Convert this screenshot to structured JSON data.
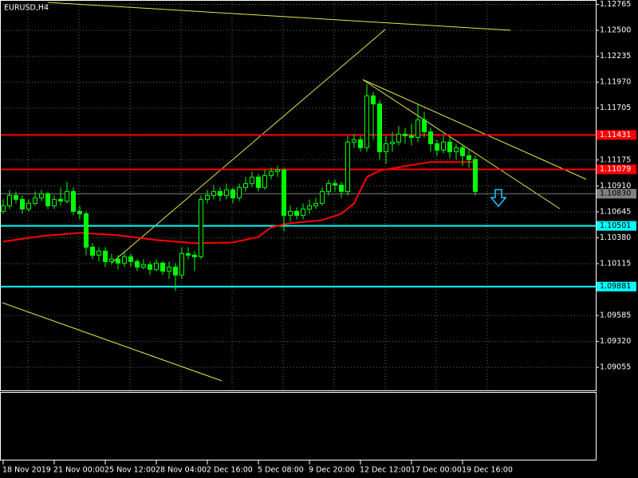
{
  "chart_data": {
    "type": "candlestick",
    "title": "EURUSD,H4",
    "background": "#000000",
    "up_color": "#00ff00",
    "down_color": "#00ff00",
    "grid": true,
    "grid_color": "#c0c0c0",
    "xlim": [
      -0.5,
      92.875
    ],
    "ylim": [
      1.0882,
      1.1281
    ],
    "xticks": [
      {
        "value": 0,
        "label": "18 Nov 2019"
      },
      {
        "value": 8,
        "label": "21 Nov 00:00"
      },
      {
        "value": 16,
        "label": "25 Nov 12:00"
      },
      {
        "value": 24,
        "label": "28 Nov 04:00"
      },
      {
        "value": 32,
        "label": "2 Dec 16:00"
      },
      {
        "value": 40,
        "label": "5 Dec 08:00"
      },
      {
        "value": 48,
        "label": "9 Dec 20:00"
      },
      {
        "value": 56,
        "label": "12 Dec 12:00"
      },
      {
        "value": 64,
        "label": "17 Dec 00:00"
      },
      {
        "value": 72,
        "label": "19 Dec 16:00"
      }
    ],
    "yticks": [
      1.12765,
      {
        "value": 1.125,
        "label": "1.12500"
      },
      1.12235,
      {
        "value": 1.1197,
        "label": "1.11970"
      },
      1.11705,
      1.11175,
      {
        "value": 1.1091,
        "label": "1.10910"
      },
      1.10645,
      {
        "value": 1.1038,
        "label": "1.10380"
      },
      1.10115,
      1.09585,
      {
        "value": 1.0932,
        "label": "1.09320"
      },
      1.09055
    ],
    "open": [
      1.1065,
      1.10707,
      1.10812,
      1.10772,
      1.10674,
      1.10731,
      1.10788,
      1.10829,
      1.10707,
      1.10772,
      1.10755,
      1.10853,
      1.1065,
      1.10625,
      1.10284,
      1.10202,
      1.10243,
      1.10137,
      1.10162,
      1.10121,
      1.10186,
      1.10137,
      1.1008,
      1.10105,
      1.10056,
      1.10121,
      1.10039,
      1.1008,
      1.09999,
      1.10218,
      1.10202,
      1.10186,
      1.10772,
      1.10812,
      1.10853,
      1.10812,
      1.10869,
      1.10788,
      1.10894,
      1.10934,
      1.11,
      1.10894,
      1.11016,
      1.11057,
      1.11073,
      1.10609,
      1.1065,
      1.10609,
      1.10674,
      1.10707,
      1.10731,
      1.10853,
      1.10934,
      1.10918,
      1.10853,
      1.11358,
      1.11382,
      1.11301,
      1.1183,
      1.11748,
      1.1126,
      1.11341,
      1.11358,
      1.11439,
      1.11423,
      1.11406,
      1.11585,
      1.11463,
      1.11341,
      1.11276,
      1.11358,
      1.1126,
      1.11301,
      1.11219,
      1.11179
    ],
    "high": [
      1.10772,
      1.10869,
      1.10853,
      1.10812,
      1.10772,
      1.10853,
      1.10869,
      1.10853,
      1.10812,
      1.10894,
      1.10951,
      1.10894,
      1.10707,
      1.1065,
      1.10324,
      1.10284,
      1.10284,
      1.10218,
      1.10202,
      1.10243,
      1.10218,
      1.10162,
      1.10162,
      1.10137,
      1.10162,
      1.10137,
      1.10137,
      1.10121,
      1.10284,
      1.10284,
      1.10243,
      1.10812,
      1.10869,
      1.10918,
      1.10894,
      1.10934,
      1.10894,
      1.10934,
      1.11,
      1.11057,
      1.11032,
      1.11073,
      1.11097,
      1.11113,
      1.11097,
      1.10707,
      1.1069,
      1.10731,
      1.10772,
      1.10788,
      1.10894,
      1.10975,
      1.10975,
      1.10951,
      1.11423,
      1.11439,
      1.11423,
      1.11952,
      1.1187,
      1.11789,
      1.11423,
      1.11463,
      1.1152,
      1.11504,
      1.11545,
      1.11748,
      1.11667,
      1.11504,
      1.11382,
      1.11423,
      1.11406,
      1.11341,
      1.11325,
      1.11276,
      1.11219
    ],
    "low": [
      1.10625,
      1.10674,
      1.10731,
      1.10625,
      1.1065,
      1.10707,
      1.10755,
      1.10674,
      1.10674,
      1.10707,
      1.10731,
      1.10609,
      1.10568,
      1.10202,
      1.10162,
      1.10137,
      1.1008,
      1.10105,
      1.10056,
      1.1008,
      1.1008,
      1.10039,
      1.10056,
      1.09999,
      1.10039,
      1.09999,
      1.09958,
      1.09836,
      1.09958,
      1.10162,
      1.10039,
      1.10162,
      1.10731,
      1.10772,
      1.10755,
      1.10772,
      1.10731,
      1.10755,
      1.10853,
      1.10894,
      1.10853,
      1.10869,
      1.10975,
      1.11,
      1.10446,
      1.10544,
      1.10568,
      1.10568,
      1.10625,
      1.10674,
      1.10707,
      1.10812,
      1.10853,
      1.10788,
      1.10812,
      1.11301,
      1.1126,
      1.1126,
      1.11382,
      1.11179,
      1.11138,
      1.1126,
      1.11325,
      1.11341,
      1.11325,
      1.11358,
      1.11406,
      1.1126,
      1.11219,
      1.11244,
      1.11195,
      1.11179,
      1.11113,
      1.11097,
      1.10812
    ],
    "close": [
      1.10707,
      1.10812,
      1.10772,
      1.10674,
      1.10731,
      1.10788,
      1.10829,
      1.10707,
      1.10772,
      1.10755,
      1.10853,
      1.1065,
      1.10625,
      1.10284,
      1.10202,
      1.10243,
      1.10137,
      1.10162,
      1.10121,
      1.10186,
      1.10137,
      1.1008,
      1.10105,
      1.10056,
      1.10121,
      1.10039,
      1.1008,
      1.09999,
      1.10218,
      1.10202,
      1.10186,
      1.10772,
      1.10812,
      1.10853,
      1.10812,
      1.10869,
      1.10788,
      1.10894,
      1.10934,
      1.11,
      1.10894,
      1.11016,
      1.11057,
      1.11073,
      1.10609,
      1.1065,
      1.10609,
      1.10674,
      1.10707,
      1.10731,
      1.10853,
      1.10934,
      1.10918,
      1.10853,
      1.11358,
      1.11382,
      1.11301,
      1.1183,
      1.11748,
      1.1126,
      1.11341,
      1.11358,
      1.11439,
      1.11423,
      1.11406,
      1.11585,
      1.11463,
      1.11341,
      1.11276,
      1.11358,
      1.1126,
      1.11301,
      1.11219,
      1.11179,
      1.10853
    ],
    "moving_average": {
      "color": "#ff0000",
      "x": [
        0,
        6,
        12,
        18,
        24,
        30,
        36,
        40,
        42,
        45,
        50,
        53,
        55,
        57,
        59,
        63,
        67,
        74
      ],
      "values": [
        1.10341,
        1.10397,
        1.1043,
        1.10406,
        1.10357,
        1.10324,
        1.10332,
        1.10389,
        1.10487,
        1.10528,
        1.1056,
        1.10625,
        1.10731,
        1.11,
        1.11065,
        1.11113,
        1.11154,
        1.11154
      ]
    },
    "levels": [
      {
        "value": 1.11431,
        "color": "#ff0000"
      },
      {
        "value": 1.11079,
        "color": "#ff0000"
      },
      {
        "value": 1.1083,
        "label": "1.10830",
        "color": "#808080"
      },
      {
        "value": 1.10501,
        "color": "#00ffff"
      },
      {
        "value": 1.09881,
        "color": "#00ffff"
      }
    ]
  }
}
